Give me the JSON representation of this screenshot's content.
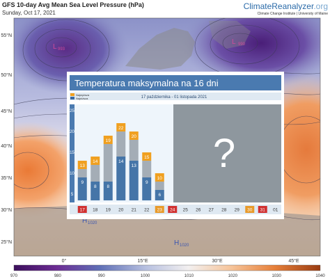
{
  "header": {
    "title": "GFS 10-day Avg Mean Sea Level Pressure (hPa)",
    "date": "Sunday, Oct 17, 2021",
    "brand_main": "ClimateReanalyzer",
    "brand_suffix": ".org",
    "brand_sub": "Climate Change Institute | University of Maine"
  },
  "map": {
    "lat_labels": [
      "55°N",
      "50°N",
      "45°N",
      "40°N",
      "35°N",
      "30°N",
      "25°N"
    ],
    "lon_labels": [
      "0°",
      "15°E",
      "30°E",
      "45°E"
    ],
    "pressure_labels": [
      "L",
      "993",
      "L",
      "990",
      "H",
      "1020",
      "H",
      "1020"
    ],
    "colorbar_ticks": [
      "970",
      "980",
      "990",
      "1000",
      "1010",
      "1020",
      "1030",
      "1040"
    ],
    "colors": {
      "low_deep": "#5a2a8a",
      "low": "#6a6fb8",
      "mid": "#c8cce4",
      "high": "#f29a55",
      "land": "#8a8a8a"
    }
  },
  "chart_data": {
    "type": "bar",
    "title": "Temperatura maksymalna na 16 dni",
    "subtitle": "17 października - 01 listopada 2021",
    "legend": [
      "Najwyższa",
      "Najniższa"
    ],
    "yticks": [
      5,
      10,
      15,
      20,
      25
    ],
    "ylim": [
      3,
      26
    ],
    "categories": [
      "17",
      "18",
      "19",
      "20",
      "21",
      "22",
      "23",
      "24",
      "25",
      "26",
      "27",
      "28",
      "29",
      "30",
      "31",
      "01"
    ],
    "weekend_colors": {
      "17": "#d03030",
      "23": "#e89a2a",
      "24": "#d03030",
      "30": "#e89a2a",
      "31": "#d03030"
    },
    "series": [
      {
        "name": "Najwyższa",
        "values": [
          13,
          14,
          19,
          22,
          20,
          15,
          10,
          null,
          null,
          null,
          null,
          null,
          null,
          null,
          null,
          null
        ]
      },
      {
        "name": "Najniższa",
        "values": [
          9,
          8,
          8,
          14,
          13,
          9,
          6,
          null,
          null,
          null,
          null,
          null,
          null,
          null,
          null,
          null
        ]
      }
    ],
    "unknown_mark": "?"
  }
}
